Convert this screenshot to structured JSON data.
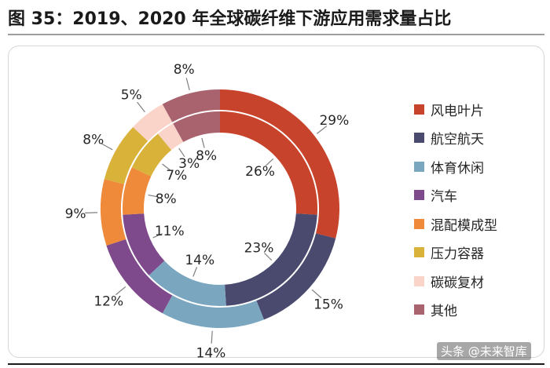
{
  "title": "图 35：2019、2020 年全球碳纤维下游应用需求量占比",
  "watermark": "头条 @未来智库",
  "chart_data": {
    "type": "pie",
    "variant": "double-donut",
    "title": "图 35：2019、2020 年全球碳纤维下游应用需求量占比",
    "categories": [
      "风电叶片",
      "航空航天",
      "体育休闲",
      "汽车",
      "混配模成型",
      "压力容器",
      "碳碳复材",
      "其他"
    ],
    "colors": [
      "#c8432b",
      "#4a4a6e",
      "#7aa6bf",
      "#7e4a8c",
      "#ee8a3a",
      "#d9b23a",
      "#fad3c9",
      "#a9636f"
    ],
    "series": [
      {
        "name": "2019",
        "ring": "inner",
        "values": [
          26,
          23,
          14,
          11,
          8,
          7,
          3,
          8
        ],
        "labels": [
          "26%",
          "23%",
          "14%",
          "11%",
          "8%",
          "7%",
          "3%",
          "8%"
        ]
      },
      {
        "name": "2020",
        "ring": "outer",
        "values": [
          29,
          15,
          14,
          12,
          9,
          8,
          5,
          8
        ],
        "labels": [
          "29%",
          "15%",
          "14%",
          "12%",
          "9%",
          "8%",
          "5%",
          "8%"
        ]
      }
    ],
    "legend_position": "right"
  }
}
